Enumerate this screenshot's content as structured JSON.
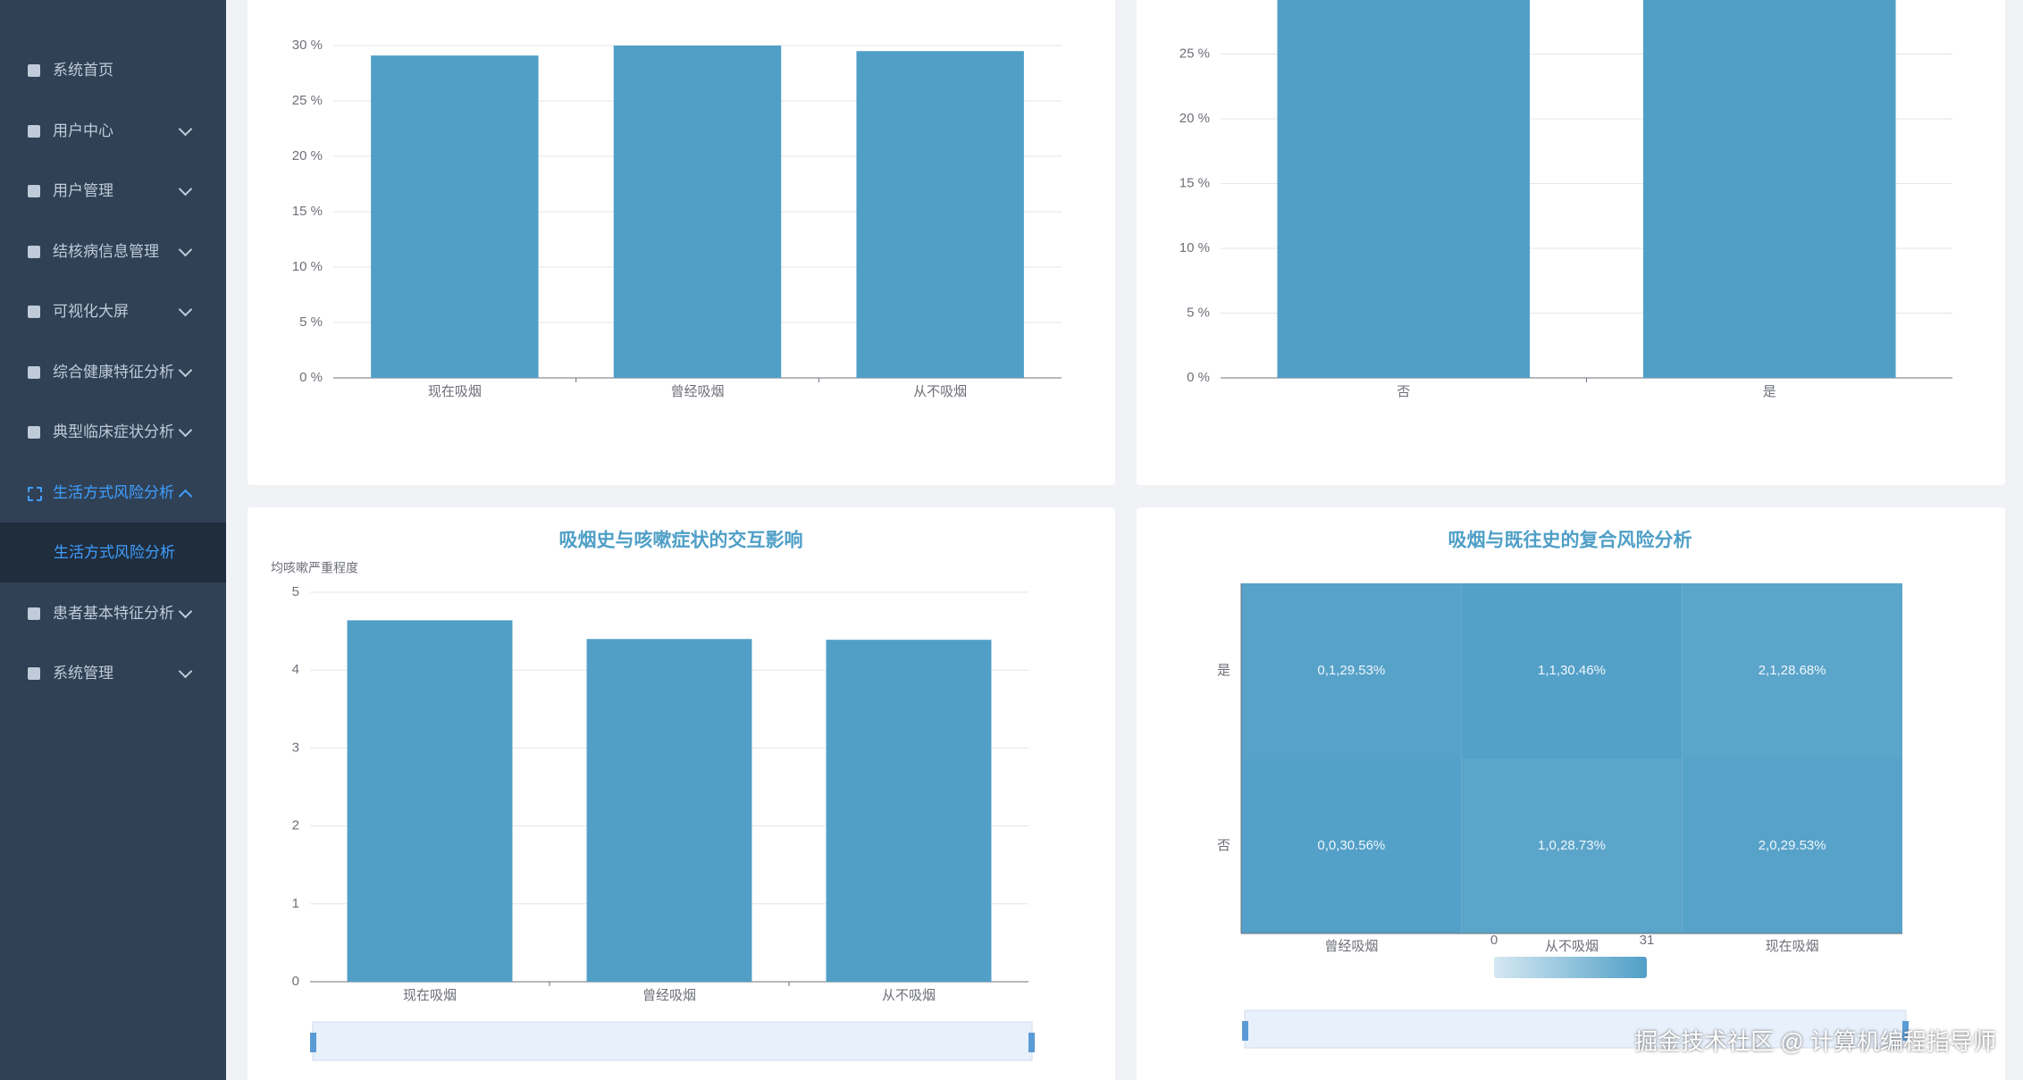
{
  "sidebar": {
    "items": [
      {
        "label": "系统首页"
      },
      {
        "label": "用户中心",
        "arrow": "down"
      },
      {
        "label": "用户管理",
        "arrow": "down"
      },
      {
        "label": "结核病信息管理",
        "arrow": "down"
      },
      {
        "label": "可视化大屏",
        "arrow": "down"
      },
      {
        "label": "综合健康特征分析",
        "arrow": "down"
      },
      {
        "label": "典型临床症状分析",
        "arrow": "down"
      },
      {
        "label": "生活方式风险分析",
        "arrow": "up",
        "active": true,
        "children": [
          {
            "label": "生活方式风险分析",
            "active": true
          }
        ]
      },
      {
        "label": "患者基本特征分析",
        "arrow": "down"
      },
      {
        "label": "系统管理",
        "arrow": "down"
      }
    ]
  },
  "chart_data": [
    {
      "type": "bar",
      "categories": [
        "现在吸烟",
        "曾经吸烟",
        "从不吸烟"
      ],
      "values": [
        29.1,
        30.0,
        29.5
      ],
      "color": "#519fc7",
      "ylim": [
        0,
        30
      ],
      "yticks": [
        {
          "value": 0,
          "label": "0 %"
        },
        {
          "value": 5,
          "label": "5 %"
        },
        {
          "value": 10,
          "label": "10 %"
        },
        {
          "value": 15,
          "label": "15 %"
        },
        {
          "value": 20,
          "label": "20 %"
        },
        {
          "value": 25,
          "label": "25 %"
        },
        {
          "value": 30,
          "label": "30 %"
        }
      ],
      "grid": true
    },
    {
      "type": "bar",
      "categories": [
        "否",
        "是"
      ],
      "values": [
        30,
        30
      ],
      "color": "#519fc7",
      "ylim": [
        0,
        30
      ],
      "yticks": [
        {
          "value": 0,
          "label": "0 %"
        },
        {
          "value": 5,
          "label": "5 %"
        },
        {
          "value": 10,
          "label": "10 %"
        },
        {
          "value": 15,
          "label": "15 %"
        },
        {
          "value": 20,
          "label": "20 %"
        },
        {
          "value": 25,
          "label": "25 %"
        }
      ],
      "grid": true
    },
    {
      "type": "bar",
      "title": "吸烟史与咳嗽症状的交互影响",
      "y_label": "均咳嗽严重程度",
      "categories": [
        "现在吸烟",
        "曾经吸烟",
        "从不吸烟"
      ],
      "values": [
        4.64,
        4.4,
        4.39
      ],
      "color": "#519fc7",
      "ylim": [
        0,
        5
      ],
      "yticks": [
        0,
        1,
        2,
        3,
        4,
        5
      ],
      "grid": true,
      "data_zoom": true
    },
    {
      "type": "heatmap",
      "title": "吸烟与既往史的复合风险分析",
      "x_categories": [
        "曾经吸烟",
        "从不吸烟",
        "现在吸烟"
      ],
      "y_categories": [
        "否",
        "是"
      ],
      "data": [
        [
          0,
          1,
          29.53
        ],
        [
          1,
          1,
          30.46
        ],
        [
          2,
          1,
          28.68
        ],
        [
          0,
          0,
          30.56
        ],
        [
          1,
          0,
          28.73
        ],
        [
          2,
          0,
          29.53
        ]
      ],
      "value_labels": [
        "0,1,29.53%",
        "1,1,30.46%",
        "2,1,28.68%",
        "0,0,30.56%",
        "1,0,28.73%",
        "2,0,29.53%"
      ],
      "visual_map": {
        "min": 0,
        "max": 31,
        "colors": [
          "#d4e8f2",
          "#519fc7"
        ]
      },
      "data_zoom": true
    }
  ],
  "watermark": "掘金技术社区 @ 计算机编程指导师"
}
